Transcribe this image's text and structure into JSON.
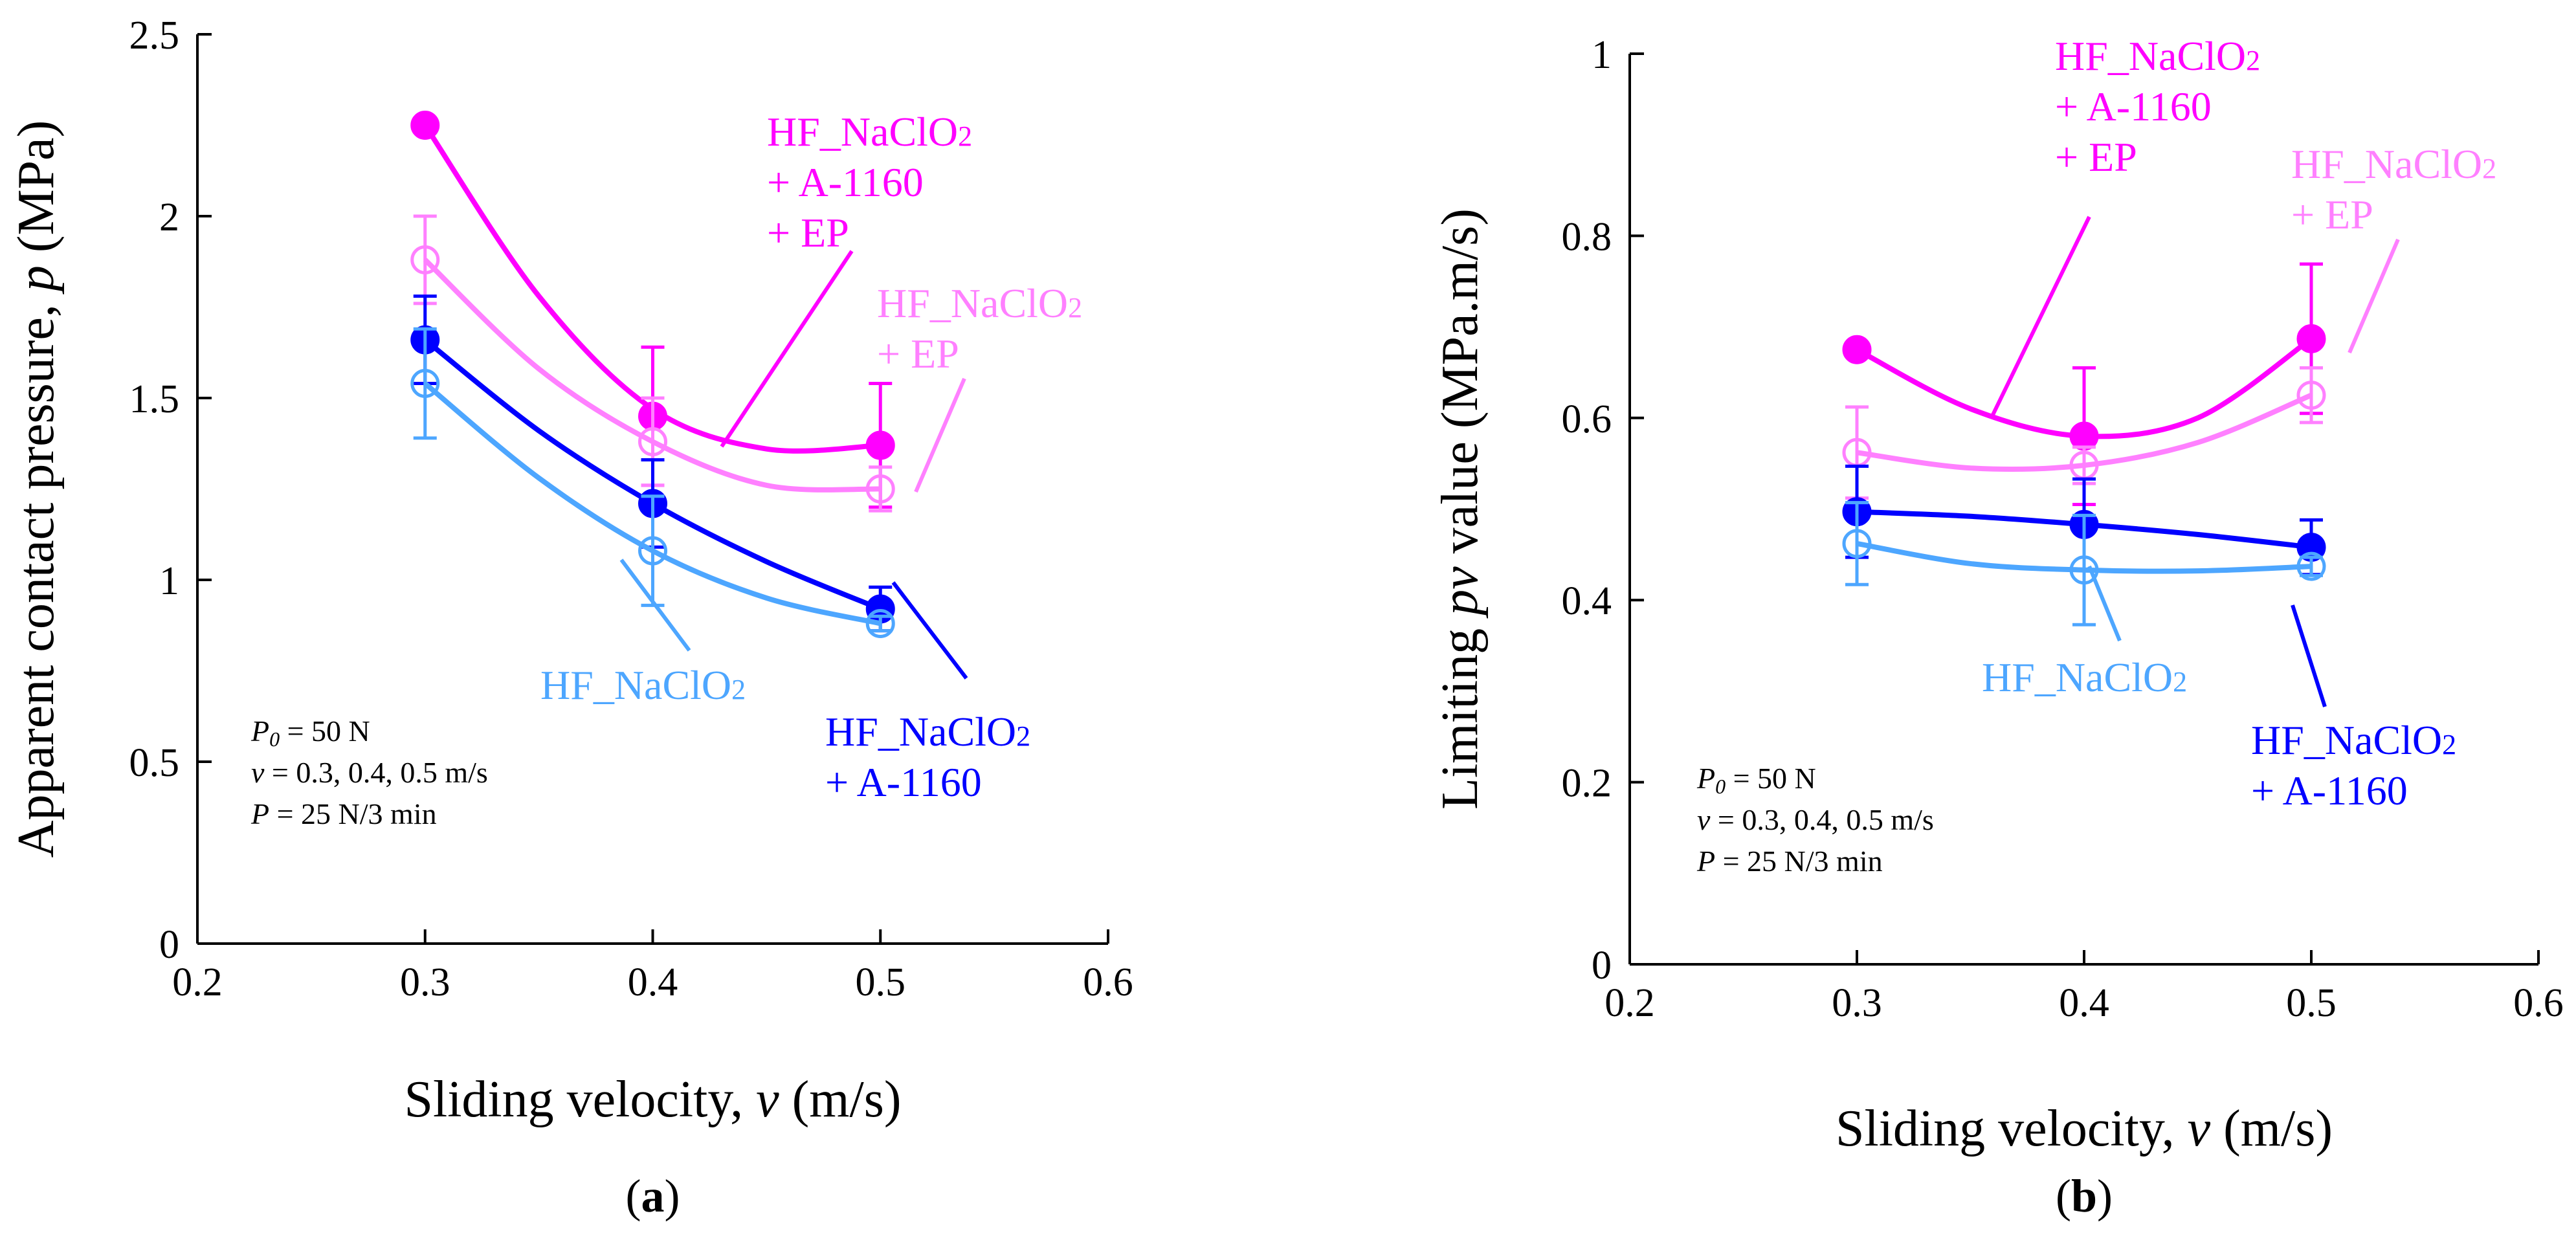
{
  "chart_data": [
    {
      "type": "line",
      "panel_label": "a",
      "ylabel_prefix": "Apparent contact pressure, ",
      "ylabel_symbol": "p",
      "ylabel_suffix": " (MPa)",
      "xlabel_prefix": "Sliding velocity, ",
      "xlabel_symbol": "v",
      "xlabel_suffix": "  (m/s)",
      "xlim": [
        0.2,
        0.6
      ],
      "ylim": [
        0,
        2.5
      ],
      "xticks": [
        "0.2",
        "0.3",
        "0.4",
        "0.5",
        "0.6"
      ],
      "yticks": [
        "0",
        "0.5",
        "1",
        "1.5",
        "2",
        "2.5"
      ],
      "grid": false,
      "x": [
        0.3,
        0.4,
        0.5
      ],
      "series": [
        {
          "id": "hf_a1160_ep",
          "name": "HF_NaClO2 + A-1160 + EP",
          "color": "#ff00ff",
          "marker": "filled",
          "values": [
            2.25,
            1.45,
            1.37
          ],
          "errors": [
            0,
            0.19,
            0.17
          ],
          "fit": [
            2.25,
            1.78,
            1.47,
            1.36,
            1.37
          ]
        },
        {
          "id": "hf_ep",
          "name": "HF_NaClO2 + EP",
          "color": "#ff80ff",
          "marker": "open",
          "values": [
            1.88,
            1.38,
            1.25
          ],
          "errors": [
            0.12,
            0.12,
            0.06
          ],
          "fit": [
            1.88,
            1.58,
            1.38,
            1.26,
            1.25
          ]
        },
        {
          "id": "hf_a1160",
          "name": "HF_NaClO2 + A-1160",
          "color": "#0000ff",
          "marker": "filled",
          "values": [
            1.66,
            1.21,
            0.92
          ],
          "errors": [
            0.12,
            0.12,
            0.06
          ],
          "fit": [
            1.66,
            1.41,
            1.21,
            1.05,
            0.92
          ]
        },
        {
          "id": "hf",
          "name": "HF_NaClO2",
          "color": "#4da6ff",
          "marker": "open",
          "values": [
            1.54,
            1.08,
            0.88
          ],
          "errors": [
            0.15,
            0.15,
            0.02
          ],
          "fit": [
            1.54,
            1.28,
            1.08,
            0.95,
            0.88
          ]
        }
      ],
      "labels": [
        {
          "series": "hf_a1160_ep",
          "lines": [
            "HF_NaClO",
            "+ A-1160",
            "+ EP"
          ],
          "sub": "2"
        },
        {
          "series": "hf_ep",
          "lines": [
            "HF_NaClO",
            "+ EP"
          ],
          "sub": "2"
        },
        {
          "series": "hf",
          "lines": [
            "HF_NaClO"
          ],
          "sub": "2"
        },
        {
          "series": "hf_a1160",
          "lines": [
            "HF_NaClO",
            "+ A-1160"
          ],
          "sub": "2"
        }
      ],
      "conditions": {
        "p0_symbol": "P",
        "p0_sub": "0",
        "p0_text": " = 50 N",
        "v_symbol": "v",
        "v_text": " = 0.3, 0.4, 0.5 m/s",
        "p_symbol": "P",
        "p_text": " = 25 N/3 min"
      }
    },
    {
      "type": "line",
      "panel_label": "b",
      "ylabel_prefix": "Limiting ",
      "ylabel_symbol": "pv",
      "ylabel_suffix": " value (MPa.m/s)",
      "xlabel_prefix": "Sliding velocity, ",
      "xlabel_symbol": "v",
      "xlabel_suffix": "  (m/s)",
      "xlim": [
        0.2,
        0.6
      ],
      "ylim": [
        0,
        1
      ],
      "xticks": [
        "0.2",
        "0.3",
        "0.4",
        "0.5",
        "0.6"
      ],
      "yticks": [
        "0",
        "0.2",
        "0.4",
        "0.6",
        "0.8",
        "1"
      ],
      "grid": false,
      "x": [
        0.3,
        0.4,
        0.5
      ],
      "series": [
        {
          "id": "hf_a1160_ep",
          "name": "HF_NaClO2 + A-1160 + EP",
          "color": "#ff00ff",
          "marker": "filled",
          "values": [
            0.675,
            0.58,
            0.687
          ],
          "errors": [
            0,
            0.075,
            0.082
          ],
          "fit": [
            0.675,
            0.61,
            0.58,
            0.6,
            0.687
          ]
        },
        {
          "id": "hf_ep",
          "name": "HF_NaClO2 + EP",
          "color": "#ff80ff",
          "marker": "open",
          "values": [
            0.562,
            0.548,
            0.625
          ],
          "errors": [
            0.05,
            0.02,
            0.03
          ],
          "fit": [
            0.562,
            0.545,
            0.548,
            0.573,
            0.625
          ]
        },
        {
          "id": "hf_a1160",
          "name": "HF_NaClO2 + A-1160",
          "color": "#0000ff",
          "marker": "filled",
          "values": [
            0.497,
            0.483,
            0.458
          ],
          "errors": [
            0.05,
            0.05,
            0.03
          ],
          "fit": [
            0.497,
            0.492,
            0.483,
            0.472,
            0.458
          ]
        },
        {
          "id": "hf",
          "name": "HF_NaClO2",
          "color": "#4da6ff",
          "marker": "open",
          "values": [
            0.462,
            0.433,
            0.437
          ],
          "errors": [
            0.045,
            0.06,
            0.01
          ],
          "fit": [
            0.462,
            0.44,
            0.433,
            0.432,
            0.437
          ]
        }
      ],
      "labels": [
        {
          "series": "hf_a1160_ep",
          "lines": [
            "HF_NaClO",
            "+ A-1160",
            "+ EP"
          ],
          "sub": "2"
        },
        {
          "series": "hf_ep",
          "lines": [
            "HF_NaClO",
            "+ EP"
          ],
          "sub": "2"
        },
        {
          "series": "hf",
          "lines": [
            "HF_NaClO"
          ],
          "sub": "2"
        },
        {
          "series": "hf_a1160",
          "lines": [
            "HF_NaClO",
            "+ A-1160"
          ],
          "sub": "2"
        }
      ],
      "conditions": {
        "p0_symbol": "P",
        "p0_sub": "0",
        "p0_text": " = 50 N",
        "v_symbol": "v",
        "v_text": " = 0.3, 0.4, 0.5 m/s",
        "p_symbol": "P",
        "p_text": " = 25 N/3 min"
      }
    }
  ]
}
